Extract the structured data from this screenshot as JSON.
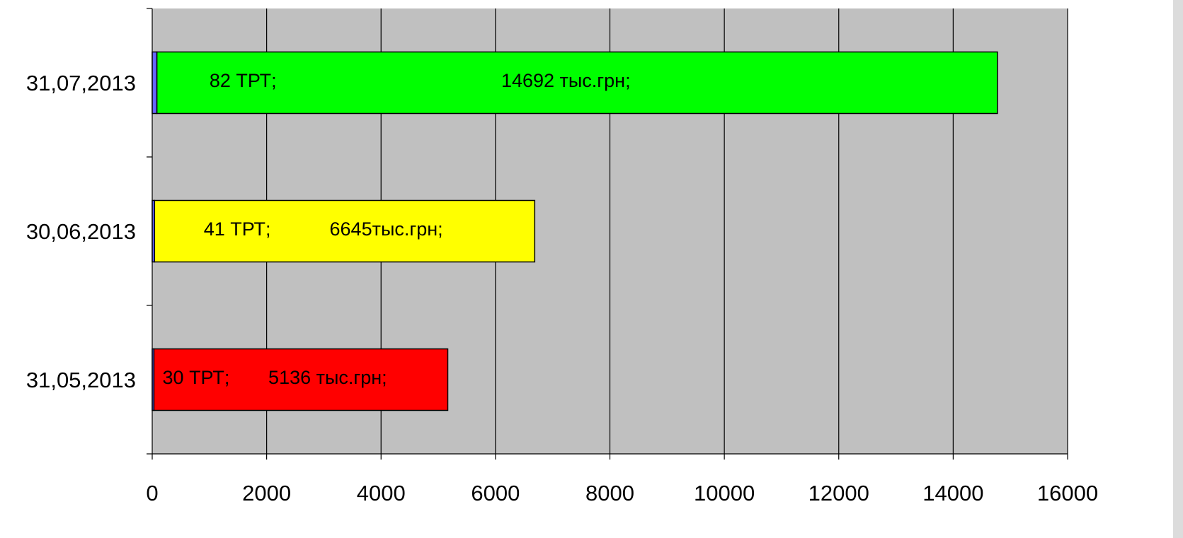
{
  "chart_data": {
    "type": "bar",
    "orientation": "horizontal",
    "categories": [
      "31,05,2013",
      "30,06,2013",
      "31,07,2013"
    ],
    "series": [
      {
        "values": [
          30,
          41,
          82
        ],
        "color": "#6666ff"
      },
      {
        "values": [
          5136,
          6645,
          14692
        ]
      }
    ],
    "bar_colors": [
      "#ff0000",
      "#ffff00",
      "#00ff00"
    ],
    "data_labels": [
      {
        "count_label": "30 ТРТ;",
        "value_label": "5136 тыс.грн;"
      },
      {
        "count_label": "41 ТРТ;",
        "value_label": "6645тыс.грн;"
      },
      {
        "count_label": "82 ТРТ;",
        "value_label": "14692 тыс.грн;"
      }
    ],
    "x_ticks": [
      "0",
      "2000",
      "4000",
      "6000",
      "8000",
      "10000",
      "12000",
      "14000",
      "16000"
    ],
    "xlim": [
      0,
      16000
    ],
    "stacked": true,
    "grid": "vertical",
    "plot_background": "#c0c0c0",
    "legend": "none",
    "title": "",
    "xlabel": "",
    "ylabel": ""
  }
}
